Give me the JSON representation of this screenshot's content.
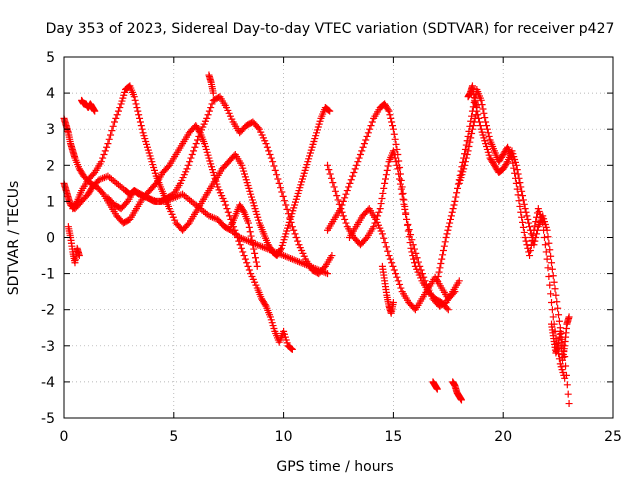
{
  "chart_data": {
    "type": "scatter",
    "title": "Day 353 of 2023, Sidereal Day-to-day VTEC variation (SDTVAR) for receiver p427",
    "xlabel": "GPS time / hours",
    "ylabel": "SDTVAR / TECUs",
    "xlim": [
      0,
      25
    ],
    "ylim": [
      -5,
      5
    ],
    "xticks": [
      0,
      5,
      10,
      15,
      20,
      25
    ],
    "yticks": [
      -5,
      -4,
      -3,
      -2,
      -1,
      0,
      1,
      2,
      3,
      4,
      5
    ],
    "grid": true,
    "marker": "+",
    "color": "#ff0000",
    "series": [
      {
        "name": "t1",
        "x": [
          0.0,
          0.1,
          0.2,
          0.3,
          0.5,
          0.8,
          1.1,
          1.3,
          1.6,
          2.0,
          2.4,
          2.8,
          3.0,
          3.2,
          3.4,
          3.8,
          4.2,
          4.6,
          5.0,
          5.4,
          5.8,
          6.2,
          6.6,
          7.0,
          7.3,
          7.6,
          8.0,
          8.4,
          8.8,
          9.2,
          9.6,
          10.0,
          10.4,
          10.8,
          11.2,
          11.6,
          12.0
        ],
        "y": [
          1.5,
          1.3,
          1.1,
          0.9,
          0.8,
          1.0,
          1.2,
          1.4,
          1.6,
          1.7,
          1.5,
          1.3,
          1.2,
          1.3,
          1.2,
          1.1,
          1.0,
          1.0,
          1.1,
          1.2,
          1.0,
          0.8,
          0.6,
          0.5,
          0.3,
          0.2,
          0.0,
          -0.1,
          -0.2,
          -0.3,
          -0.4,
          -0.5,
          -0.6,
          -0.7,
          -0.8,
          -0.9,
          -1.0
        ]
      },
      {
        "name": "t2",
        "x": [
          0.0,
          0.1,
          0.2,
          0.3,
          0.4,
          0.5,
          0.7,
          0.9,
          1.2,
          1.5,
          1.8,
          2.1,
          2.4,
          2.7,
          3.0,
          3.3,
          3.6,
          3.9,
          4.2,
          4.5,
          4.8,
          5.1,
          5.4,
          5.7,
          6.0,
          6.2,
          6.4,
          6.6,
          6.8,
          7.0,
          7.3,
          7.6,
          7.9,
          8.2,
          8.5,
          8.8,
          9.0,
          9.2,
          9.4,
          9.6,
          9.8,
          10.0,
          10.2,
          10.4
        ],
        "y": [
          3.3,
          3.1,
          2.9,
          2.6,
          2.4,
          2.2,
          1.9,
          1.7,
          1.5,
          1.4,
          1.2,
          0.9,
          0.6,
          0.4,
          0.5,
          0.8,
          1.1,
          1.3,
          1.5,
          1.8,
          2.0,
          2.3,
          2.6,
          2.9,
          3.1,
          2.9,
          2.6,
          2.2,
          1.8,
          1.4,
          1.0,
          0.5,
          0.0,
          -0.5,
          -1.0,
          -1.4,
          -1.7,
          -1.9,
          -2.2,
          -2.6,
          -2.9,
          -2.6,
          -3.0,
          -3.1
        ]
      },
      {
        "name": "t3",
        "x": [
          0.4,
          0.6,
          0.8,
          1.1,
          1.4,
          1.7,
          2.0,
          2.3,
          2.6,
          2.8,
          3.0,
          3.2,
          3.4,
          3.6,
          3.8,
          4.0,
          4.2,
          4.4,
          4.6,
          4.8,
          5.1,
          5.4,
          5.7,
          6.0,
          6.3,
          6.6,
          6.9,
          7.2,
          7.5,
          7.8,
          8.1,
          8.3,
          8.5,
          8.7,
          8.9,
          9.1,
          9.3,
          9.5,
          9.7,
          9.9,
          10.1,
          10.3,
          10.5,
          10.7,
          10.9,
          11.1,
          11.3,
          11.5,
          11.7,
          11.9,
          12.1
        ],
        "y": [
          0.8,
          1.0,
          1.3,
          1.6,
          1.8,
          2.1,
          2.6,
          3.2,
          3.7,
          4.1,
          4.2,
          3.9,
          3.4,
          2.9,
          2.5,
          2.1,
          1.7,
          1.4,
          1.1,
          0.8,
          0.4,
          0.2,
          0.4,
          0.7,
          1.0,
          1.3,
          1.6,
          1.9,
          2.1,
          2.3,
          2.0,
          1.6,
          1.2,
          0.8,
          0.4,
          0.1,
          -0.2,
          -0.4,
          -0.5,
          -0.3,
          0.1,
          0.5,
          0.9,
          1.3,
          1.7,
          2.1,
          2.5,
          2.9,
          3.3,
          3.6,
          3.5
        ]
      },
      {
        "name": "t4",
        "x": [
          2.0,
          2.3,
          2.6,
          2.9,
          3.2,
          3.5,
          3.8,
          4.1,
          4.4,
          4.7,
          5.0,
          5.3,
          5.6,
          5.9,
          6.2,
          6.5,
          6.8,
          7.1,
          7.4,
          7.7,
          8.0,
          8.3,
          8.6,
          8.9,
          9.2,
          9.5,
          9.8,
          10.1,
          10.4,
          10.7,
          11.0,
          11.3,
          11.6,
          11.9,
          12.2
        ],
        "y": [
          1.1,
          0.9,
          0.8,
          1.0,
          1.3,
          1.2,
          1.1,
          1.0,
          1.0,
          1.1,
          1.2,
          1.5,
          1.9,
          2.4,
          2.9,
          3.3,
          3.8,
          3.9,
          3.6,
          3.2,
          2.9,
          3.1,
          3.2,
          3.0,
          2.6,
          2.1,
          1.5,
          0.9,
          0.3,
          -0.2,
          -0.6,
          -0.9,
          -1.0,
          -0.8,
          -0.5
        ]
      },
      {
        "name": "t5",
        "x": [
          0.8,
          0.9,
          1.0,
          1.1,
          1.2,
          1.3,
          1.4
        ],
        "y": [
          3.8,
          3.7,
          3.7,
          3.6,
          3.7,
          3.6,
          3.5
        ]
      },
      {
        "name": "t6",
        "x": [
          0.2,
          0.3,
          0.4,
          0.5,
          0.6,
          0.7
        ],
        "y": [
          0.3,
          0.0,
          -0.4,
          -0.7,
          -0.3,
          -0.5
        ]
      },
      {
        "name": "t7",
        "x": [
          6.6,
          6.7,
          6.8
        ],
        "y": [
          4.5,
          4.3,
          4.0
        ]
      },
      {
        "name": "t8",
        "x": [
          12.0,
          12.3,
          12.6,
          12.9,
          13.2,
          13.5,
          13.8,
          14.1,
          14.4,
          14.6,
          14.8,
          15.0,
          15.2,
          15.4,
          15.6,
          15.9,
          16.2,
          16.5,
          16.8,
          17.1,
          17.4,
          17.7,
          18.0
        ],
        "y": [
          2.0,
          1.4,
          0.8,
          0.3,
          0.0,
          -0.2,
          0.0,
          0.3,
          0.8,
          1.5,
          2.1,
          2.4,
          1.9,
          1.2,
          0.5,
          -0.2,
          -0.8,
          -1.3,
          -1.7,
          -1.9,
          -1.8,
          -1.5,
          -1.2
        ]
      },
      {
        "name": "t9",
        "x": [
          12.0,
          12.3,
          12.6,
          12.9,
          13.2,
          13.5,
          13.8,
          14.1,
          14.4,
          14.6,
          14.8,
          15.0,
          15.2,
          15.4,
          15.6,
          15.8,
          16.0,
          16.3,
          16.6,
          16.9,
          17.2,
          17.5
        ],
        "y": [
          0.2,
          0.5,
          0.8,
          1.3,
          1.8,
          2.3,
          2.8,
          3.3,
          3.6,
          3.7,
          3.5,
          3.0,
          2.3,
          1.4,
          0.5,
          -0.3,
          -0.8,
          -1.2,
          -1.5,
          -1.7,
          -1.8,
          -2.0
        ]
      },
      {
        "name": "t10",
        "x": [
          13.0,
          13.3,
          13.6,
          13.9,
          14.2,
          14.5,
          14.8,
          15.1,
          15.4,
          15.7,
          16.0,
          16.3,
          16.6,
          16.9,
          17.2,
          17.5,
          17.8
        ],
        "y": [
          0.0,
          0.3,
          0.6,
          0.8,
          0.5,
          0.1,
          -0.5,
          -1.0,
          -1.5,
          -1.8,
          -2.0,
          -1.7,
          -1.4,
          -1.1,
          -1.4,
          -1.7,
          -1.5
        ]
      },
      {
        "name": "t11",
        "x": [
          14.5,
          14.6,
          14.7,
          14.8,
          14.9,
          15.0
        ],
        "y": [
          -0.8,
          -1.2,
          -1.6,
          -1.9,
          -2.1,
          -1.8
        ]
      },
      {
        "name": "t12",
        "x": [
          16.8,
          16.9,
          17.0
        ],
        "y": [
          -4.0,
          -4.1,
          -4.2
        ]
      },
      {
        "name": "t13",
        "x": [
          17.0,
          17.2,
          17.4,
          17.6,
          17.8,
          18.0,
          18.2,
          18.4,
          18.6,
          18.8,
          19.0,
          19.2,
          19.4,
          19.6,
          19.8,
          20.0,
          20.2,
          20.4,
          20.6,
          20.8,
          21.0,
          21.2,
          21.4,
          21.6,
          21.8,
          22.0,
          22.2,
          22.4,
          22.6,
          22.8
        ],
        "y": [
          -1.2,
          -0.6,
          0.0,
          0.5,
          1.0,
          1.6,
          2.2,
          2.8,
          3.5,
          4.1,
          3.8,
          3.2,
          2.7,
          2.4,
          2.1,
          2.3,
          2.5,
          2.2,
          1.5,
          0.7,
          0.0,
          -0.5,
          0.2,
          0.8,
          0.4,
          -0.6,
          -1.8,
          -2.8,
          -3.5,
          -3.9
        ]
      },
      {
        "name": "t14",
        "x": [
          18.0,
          18.2,
          18.4,
          18.6,
          18.8,
          19.0,
          19.2,
          19.4,
          19.6,
          19.8,
          20.0,
          20.2,
          20.4,
          20.6,
          20.8,
          21.0,
          21.2,
          21.4,
          21.6,
          21.8,
          22.0,
          22.2,
          22.4,
          22.6,
          22.8,
          23.0
        ],
        "y": [
          1.5,
          1.9,
          2.4,
          3.0,
          3.5,
          3.0,
          2.6,
          2.2,
          2.0,
          1.8,
          1.9,
          2.1,
          2.4,
          2.0,
          1.4,
          0.8,
          0.3,
          -0.2,
          0.3,
          0.6,
          0.2,
          -0.7,
          -1.6,
          -2.5,
          -3.3,
          -4.6
        ]
      },
      {
        "name": "t15",
        "x": [
          17.7,
          17.8,
          17.9,
          18.0,
          18.1
        ],
        "y": [
          -4.0,
          -4.1,
          -4.3,
          -4.4,
          -4.5
        ]
      },
      {
        "name": "t16",
        "x": [
          22.2,
          22.3,
          22.4,
          22.5,
          22.6,
          22.7,
          22.8,
          22.9,
          23.0
        ],
        "y": [
          -2.4,
          -2.8,
          -3.2,
          -3.0,
          -2.6,
          -3.4,
          -3.0,
          -2.4,
          -2.2
        ]
      },
      {
        "name": "t17",
        "x": [
          18.4,
          18.5,
          18.6,
          18.7,
          18.8
        ],
        "y": [
          3.9,
          4.0,
          4.2,
          3.8,
          3.6
        ]
      },
      {
        "name": "t18",
        "x": [
          7.6,
          7.8,
          8.0,
          8.2,
          8.4,
          8.6,
          8.8
        ],
        "y": [
          0.3,
          0.6,
          0.9,
          0.7,
          0.4,
          -0.2,
          -0.8
        ]
      }
    ]
  }
}
